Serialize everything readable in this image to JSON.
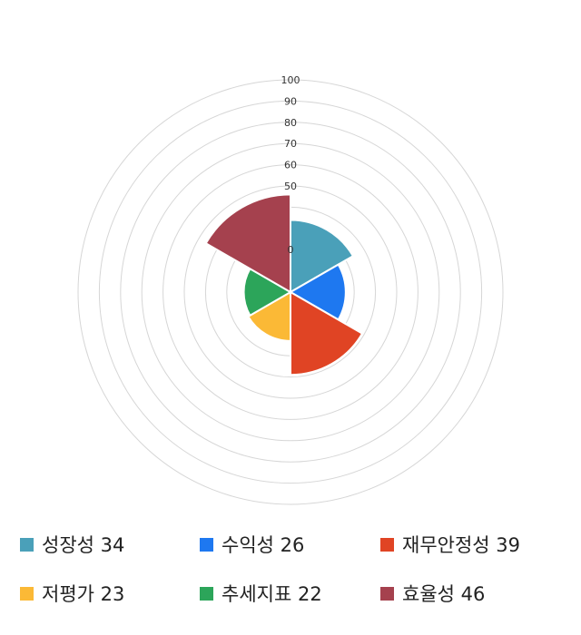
{
  "chart_data": {
    "type": "polar-area",
    "categories": [
      "성장성",
      "수익성",
      "재무안정성",
      "저평가",
      "추세지표",
      "효율성"
    ],
    "values": [
      34,
      26,
      39,
      23,
      22,
      46
    ],
    "colors": [
      "#4aa0b9",
      "#1e78f0",
      "#e04424",
      "#fbb936",
      "#2ca55a",
      "#a5414e"
    ],
    "r_ticks": [
      "0",
      "50",
      "60",
      "70",
      "80",
      "90",
      "100"
    ],
    "rmax": 100,
    "grid": true,
    "legend_position": "bottom"
  },
  "legend": [
    {
      "label": "성장성 34",
      "color": "#4aa0b9"
    },
    {
      "label": "수익성 26",
      "color": "#1e78f0"
    },
    {
      "label": "재무안정성 39",
      "color": "#e04424"
    },
    {
      "label": "저평가 23",
      "color": "#fbb936"
    },
    {
      "label": "추세지표 22",
      "color": "#2ca55a"
    },
    {
      "label": "효율성 46",
      "color": "#a5414e"
    }
  ]
}
